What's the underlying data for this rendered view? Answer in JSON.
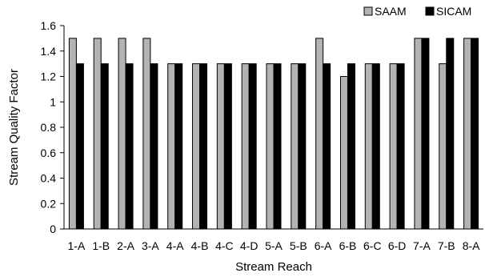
{
  "chart_data": {
    "type": "bar",
    "title": "",
    "xlabel": "Stream Reach",
    "ylabel": "Stream Quality Factor",
    "ylim": [
      0,
      1.6
    ],
    "yticks": [
      "0",
      "0.2",
      "0.4",
      "0.6",
      "0.8",
      "1",
      "1.2",
      "1.4",
      "1.6"
    ],
    "ytick_values": [
      0,
      0.2,
      0.4,
      0.6,
      0.8,
      1,
      1.2,
      1.4,
      1.6
    ],
    "grid": false,
    "legend_position": "top-right",
    "categories": [
      "1-A",
      "1-B",
      "2-A",
      "3-A",
      "4-A",
      "4-B",
      "4-C",
      "4-D",
      "5-A",
      "5-B",
      "6-A",
      "6-B",
      "6-C",
      "6-D",
      "7-A",
      "7-B",
      "8-A"
    ],
    "series": [
      {
        "name": "SAAM",
        "color": "#b3b3b3",
        "values": [
          1.5,
          1.5,
          1.5,
          1.5,
          1.3,
          1.3,
          1.3,
          1.3,
          1.3,
          1.3,
          1.5,
          1.2,
          1.3,
          1.3,
          1.5,
          1.3,
          1.5
        ]
      },
      {
        "name": "SICAM",
        "color": "#000000",
        "values": [
          1.3,
          1.3,
          1.3,
          1.3,
          1.3,
          1.3,
          1.3,
          1.3,
          1.3,
          1.3,
          1.3,
          1.3,
          1.3,
          1.3,
          1.5,
          1.5,
          1.5
        ]
      }
    ]
  }
}
